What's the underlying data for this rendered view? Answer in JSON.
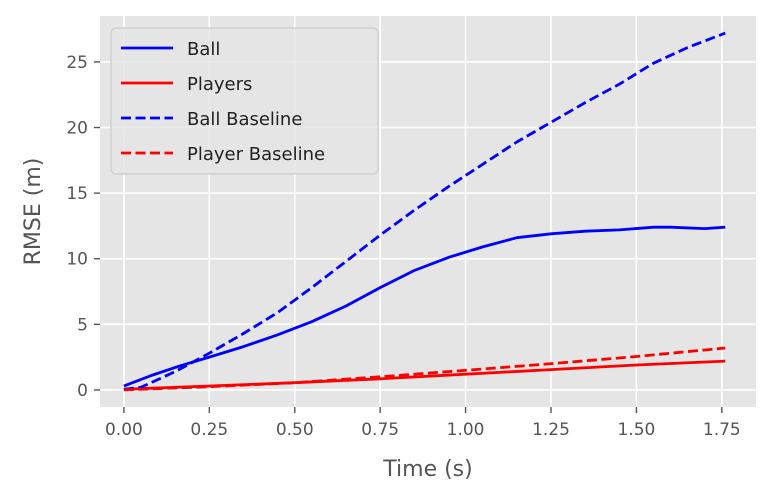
{
  "chart_data": {
    "type": "line",
    "xlabel": "Time (s)",
    "ylabel": "RMSE (m)",
    "xlim": [
      -0.07,
      1.85
    ],
    "ylim": [
      -1.3,
      28.5
    ],
    "xticks": [
      "0.00",
      "0.25",
      "0.50",
      "0.75",
      "1.00",
      "1.25",
      "1.50",
      "1.75"
    ],
    "yticks": [
      "0",
      "5",
      "10",
      "15",
      "20",
      "25"
    ],
    "grid": true,
    "legend_position": "top-left",
    "series": [
      {
        "name": "Ball",
        "color": "#0000ff",
        "dash": "solid",
        "x": [
          0.0,
          0.08,
          0.16,
          0.25,
          0.35,
          0.45,
          0.55,
          0.65,
          0.75,
          0.85,
          0.95,
          1.05,
          1.15,
          1.25,
          1.35,
          1.45,
          1.55,
          1.6,
          1.7,
          1.76
        ],
        "y": [
          0.3,
          1.1,
          1.8,
          2.5,
          3.3,
          4.2,
          5.2,
          6.4,
          7.8,
          9.1,
          10.1,
          10.9,
          11.6,
          11.9,
          12.1,
          12.2,
          12.4,
          12.4,
          12.3,
          12.4
        ]
      },
      {
        "name": "Players",
        "color": "#ff0000",
        "dash": "solid",
        "x": [
          0.0,
          0.25,
          0.5,
          0.75,
          1.0,
          1.25,
          1.5,
          1.76
        ],
        "y": [
          0.05,
          0.3,
          0.55,
          0.85,
          1.2,
          1.55,
          1.9,
          2.2
        ]
      },
      {
        "name": "Ball Baseline",
        "color": "#0000ff",
        "dash": "dashed",
        "x": [
          0.0,
          0.05,
          0.15,
          0.25,
          0.35,
          0.45,
          0.55,
          0.65,
          0.75,
          0.85,
          0.95,
          1.05,
          1.15,
          1.25,
          1.35,
          1.45,
          1.55,
          1.65,
          1.76
        ],
        "y": [
          0.05,
          0.2,
          1.4,
          2.8,
          4.3,
          5.9,
          7.8,
          9.8,
          11.8,
          13.7,
          15.5,
          17.2,
          18.9,
          20.4,
          21.9,
          23.3,
          24.9,
          26.1,
          27.2
        ]
      },
      {
        "name": "Player Baseline",
        "color": "#ff0000",
        "dash": "dashed",
        "x": [
          0.0,
          0.25,
          0.5,
          0.75,
          1.0,
          1.25,
          1.5,
          1.76
        ],
        "y": [
          0.0,
          0.25,
          0.55,
          1.0,
          1.5,
          2.0,
          2.55,
          3.2
        ]
      }
    ]
  }
}
